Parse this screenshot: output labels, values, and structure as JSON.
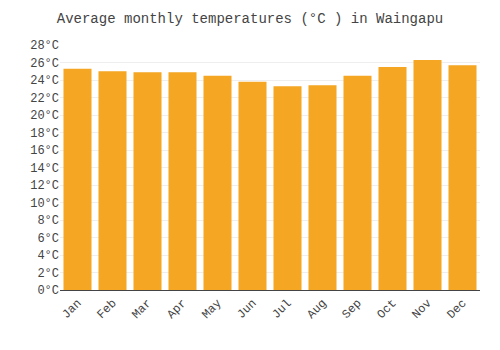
{
  "chart_data": {
    "type": "bar",
    "title": "Average monthly temperatures (°C ) in Waingapu",
    "categories": [
      "Jan",
      "Feb",
      "Mar",
      "Apr",
      "May",
      "Jun",
      "Jul",
      "Aug",
      "Sep",
      "Oct",
      "Nov",
      "Dec"
    ],
    "values": [
      25.3,
      25.0,
      24.9,
      24.9,
      24.5,
      23.8,
      23.3,
      23.4,
      24.5,
      25.5,
      26.3,
      25.7
    ],
    "color": "#F5A623",
    "ylim": [
      0,
      28
    ],
    "yticks": [
      {
        "value": 0,
        "label": "0°C"
      },
      {
        "value": 2,
        "label": "2°C"
      },
      {
        "value": 4,
        "label": "4°C"
      },
      {
        "value": 6,
        "label": "6°C"
      },
      {
        "value": 8,
        "label": "8°C"
      },
      {
        "value": 10,
        "label": "10°C"
      },
      {
        "value": 12,
        "label": "12°C"
      },
      {
        "value": 14,
        "label": "14°C"
      },
      {
        "value": 16,
        "label": "16°C"
      },
      {
        "value": 18,
        "label": "18°C"
      },
      {
        "value": 20,
        "label": "20°C"
      },
      {
        "value": 22,
        "label": "22°C"
      },
      {
        "value": 24,
        "label": "24°C"
      },
      {
        "value": 26,
        "label": "26°C"
      },
      {
        "value": 28,
        "label": "28°C"
      }
    ],
    "grid": true
  }
}
